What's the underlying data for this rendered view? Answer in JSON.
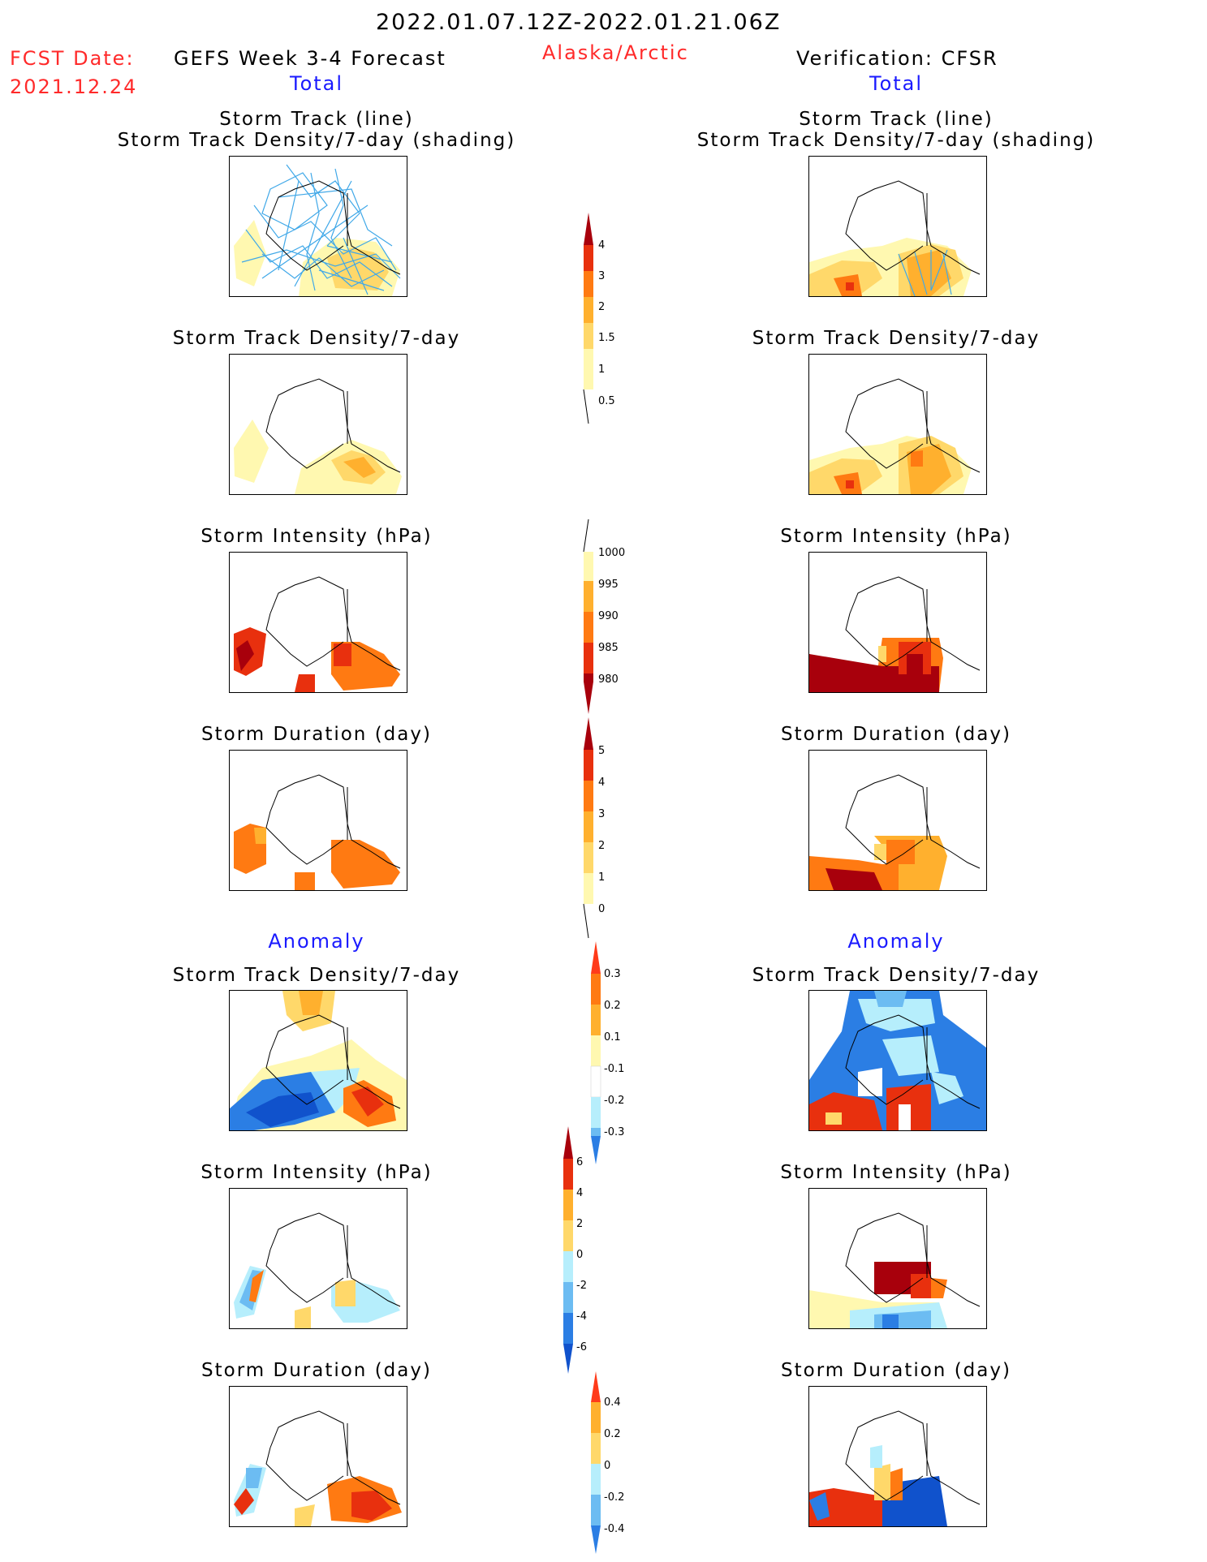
{
  "header": {
    "period": "2022.01.07.12Z-2022.01.21.06Z",
    "fcst_label": "FCST Date:",
    "fcst_date": "2021.12.24",
    "model": "GEFS Week 3-4 Forecast",
    "region": "Alaska/Arctic",
    "verification": "Verification: CFSR",
    "total_left": "Total",
    "total_right": "Total",
    "anomaly_left": "Anomaly",
    "anomaly_right": "Anomaly"
  },
  "panels": {
    "track_title_1": "Storm Track (line)",
    "track_title_2": "Storm Track Density/7-day (shading)",
    "density": "Storm Track Density/7-day",
    "intensity": "Storm Intensity (hPa)",
    "duration": "Storm Duration (day)"
  },
  "colorbars": {
    "density": [
      "4",
      "3",
      "2",
      "1.5",
      "1",
      "0.5"
    ],
    "intensity": [
      "1000",
      "995",
      "990",
      "985",
      "980"
    ],
    "duration": [
      "5",
      "4",
      "3",
      "2",
      "1",
      "0"
    ],
    "density_anom": [
      "0.3",
      "0.2",
      "0.1",
      "-0.1",
      "-0.2",
      "-0.3"
    ],
    "intensity_anom": [
      "6",
      "4",
      "2",
      "0",
      "-2",
      "-4",
      "-6"
    ],
    "duration_anom": [
      "0.4",
      "0.2",
      "0",
      "-0.2",
      "-0.4"
    ]
  },
  "colors": {
    "yellow_light": "#fff8b0",
    "yellow": "#ffd86a",
    "orange_light": "#ffb02e",
    "orange": "#ff7a12",
    "red": "#e8300e",
    "dark_red": "#a8000c",
    "blue_light": "#b6eefc",
    "blue_mid": "#6cbcf2",
    "blue": "#2b7ee4",
    "blue_dark": "#1052cc",
    "track_line": "#40a8e8"
  }
}
